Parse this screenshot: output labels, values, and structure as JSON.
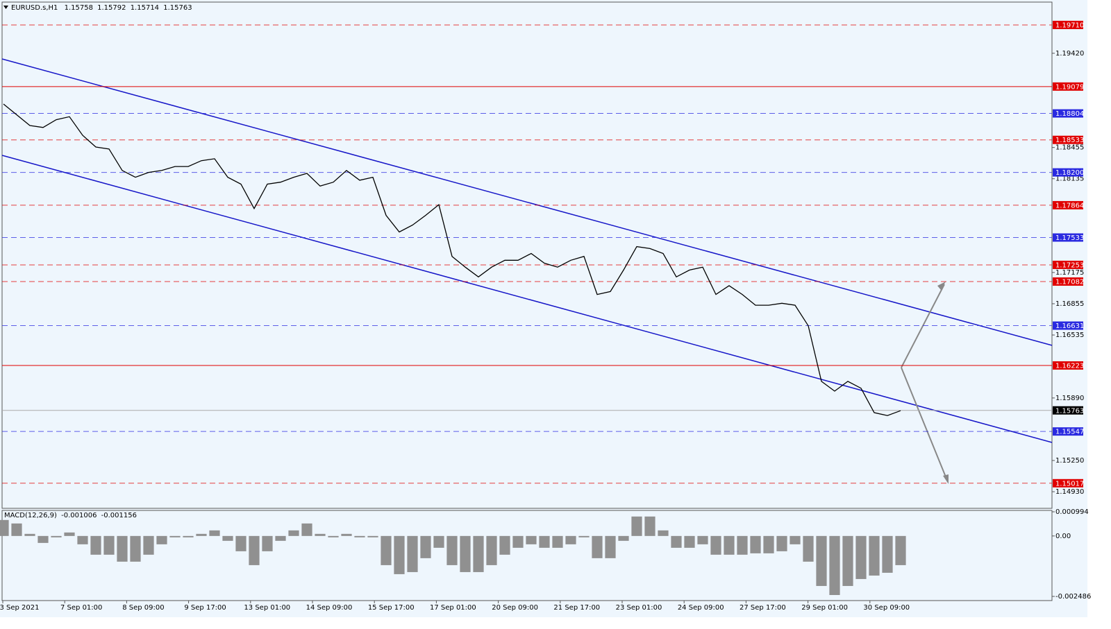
{
  "chart_data": [
    {
      "type": "line",
      "title": "EURUSD.s,H1",
      "open": 1.15758,
      "high": 1.15792,
      "low": 1.15714,
      "close": 1.15763,
      "x_labels": [
        "3 Sep 2021",
        "7 Sep 01:00",
        "8 Sep 09:00",
        "9 Sep 17:00",
        "13 Sep 01:00",
        "14 Sep 09:00",
        "15 Sep 17:00",
        "17 Sep 01:00",
        "20 Sep 09:00",
        "21 Sep 17:00",
        "23 Sep 01:00",
        "24 Sep 09:00",
        "27 Sep 17:00",
        "29 Sep 01:00",
        "30 Sep 09:00"
      ],
      "series": [
        {
          "color": "#000000",
          "values": [
            1.189,
            1.1879,
            1.1868,
            1.1866,
            1.1874,
            1.1877,
            1.1858,
            1.1846,
            1.1844,
            1.1822,
            1.1815,
            1.182,
            1.1822,
            1.1826,
            1.1826,
            1.1832,
            1.1834,
            1.1815,
            1.1808,
            1.1783,
            1.1808,
            1.181,
            1.1815,
            1.1819,
            1.1806,
            1.181,
            1.1822,
            1.1812,
            1.1815,
            1.1776,
            1.1759,
            1.1766,
            1.1776,
            1.1787,
            1.1734,
            1.1723,
            1.1713,
            1.1723,
            1.173,
            1.173,
            1.1737,
            1.1727,
            1.1723,
            1.173,
            1.1734,
            1.1695,
            1.1698,
            1.172,
            1.1744,
            1.1742,
            1.1737,
            1.1713,
            1.172,
            1.1723,
            1.1695,
            1.1704,
            1.1695,
            1.1684,
            1.1684,
            1.1686,
            1.1684,
            1.1663,
            1.1606,
            1.1596,
            1.1606,
            1.1599,
            1.1574,
            1.1571,
            1.1576
          ]
        }
      ],
      "ylim": [
        1.14767,
        1.19937
      ],
      "yticks": [
        {
          "value": 1.1942,
          "label": "1.19420"
        },
        {
          "value": 1.18455,
          "label": "1.18455"
        },
        {
          "value": 1.18135,
          "label": "1.18135"
        },
        {
          "value": 1.17175,
          "label": "1.17175"
        },
        {
          "value": 1.16855,
          "label": "1.16855"
        },
        {
          "value": 1.16535,
          "label": "1.16535"
        },
        {
          "value": 1.1589,
          "label": "1.15890"
        },
        {
          "value": 1.1525,
          "label": "1.15250"
        },
        {
          "value": 1.1493,
          "label": "1.14930"
        }
      ],
      "levels": [
        {
          "value": 1.1971,
          "label": "1.19710",
          "color": "#e00000",
          "dashed": true
        },
        {
          "value": 1.19079,
          "color": "#e00000",
          "dashed": false
        },
        {
          "value": 1.18804,
          "color": "#2a2ae0",
          "dashed": true
        },
        {
          "value": 1.18533,
          "color": "#e00000",
          "dashed": true
        },
        {
          "value": 1.182,
          "label": "1.18200",
          "color": "#2a2ae0",
          "dashed": true
        },
        {
          "value": 1.17864,
          "color": "#e00000",
          "dashed": true
        },
        {
          "value": 1.17533,
          "color": "#2a2ae0",
          "dashed": true
        },
        {
          "value": 1.17253,
          "color": "#e00000",
          "dashed": true
        },
        {
          "value": 1.17082,
          "color": "#e00000",
          "dashed": true
        },
        {
          "value": 1.16631,
          "color": "#2a2ae0",
          "dashed": true
        },
        {
          "value": 1.16223,
          "color": "#e00000",
          "dashed": false
        },
        {
          "value": 1.15763,
          "color": "#000000",
          "dashed": false
        },
        {
          "value": 1.15547,
          "color": "#2a2ae0",
          "dashed": true
        },
        {
          "value": 1.15017,
          "color": "#e00000",
          "dashed": true
        }
      ]
    },
    {
      "type": "bar",
      "title": "MACD(12,26,9)",
      "macd": -0.001006,
      "signal": -0.001156,
      "color": "#909090",
      "values": [
        0.000657,
        0.000514,
        8.6e-05,
        -0.000286,
        -5.7e-05,
        0.000143,
        -0.000343,
        -0.000771,
        -0.000771,
        -0.001057,
        -0.001057,
        -0.000771,
        -0.000343,
        -5.7e-05,
        -5.7e-05,
        8.6e-05,
        0.000229,
        -0.0002,
        -0.000629,
        -0.0012,
        -0.000629,
        -0.0002,
        0.000229,
        0.000514,
        8.6e-05,
        -5.7e-05,
        8.6e-05,
        -5.7e-05,
        -5.7e-05,
        -0.0012,
        -0.001571,
        -0.001486,
        -0.000914,
        -0.000486,
        -0.0012,
        -0.001486,
        -0.001486,
        -0.0012,
        -0.000771,
        -0.000486,
        -0.000343,
        -0.000486,
        -0.000486,
        -0.000343,
        -5.7e-05,
        -0.000914,
        -0.000914,
        -0.0002,
        0.0008,
        0.0008,
        0.000229,
        -0.000486,
        -0.000486,
        -0.000343,
        -0.000771,
        -0.000771,
        -0.000771,
        -0.000714,
        -0.000714,
        -0.000629,
        -0.000343,
        -0.001057,
        -0.002057,
        -0.002429,
        -0.002057,
        -0.001771,
        -0.001629,
        -0.001514,
        -0.0012
      ],
      "ylim": [
        -0.002486,
        0.000994
      ],
      "yticks": [
        0.000994,
        {
          "value": 0,
          "label": "0.00"
        },
        -0.002486
      ]
    }
  ]
}
